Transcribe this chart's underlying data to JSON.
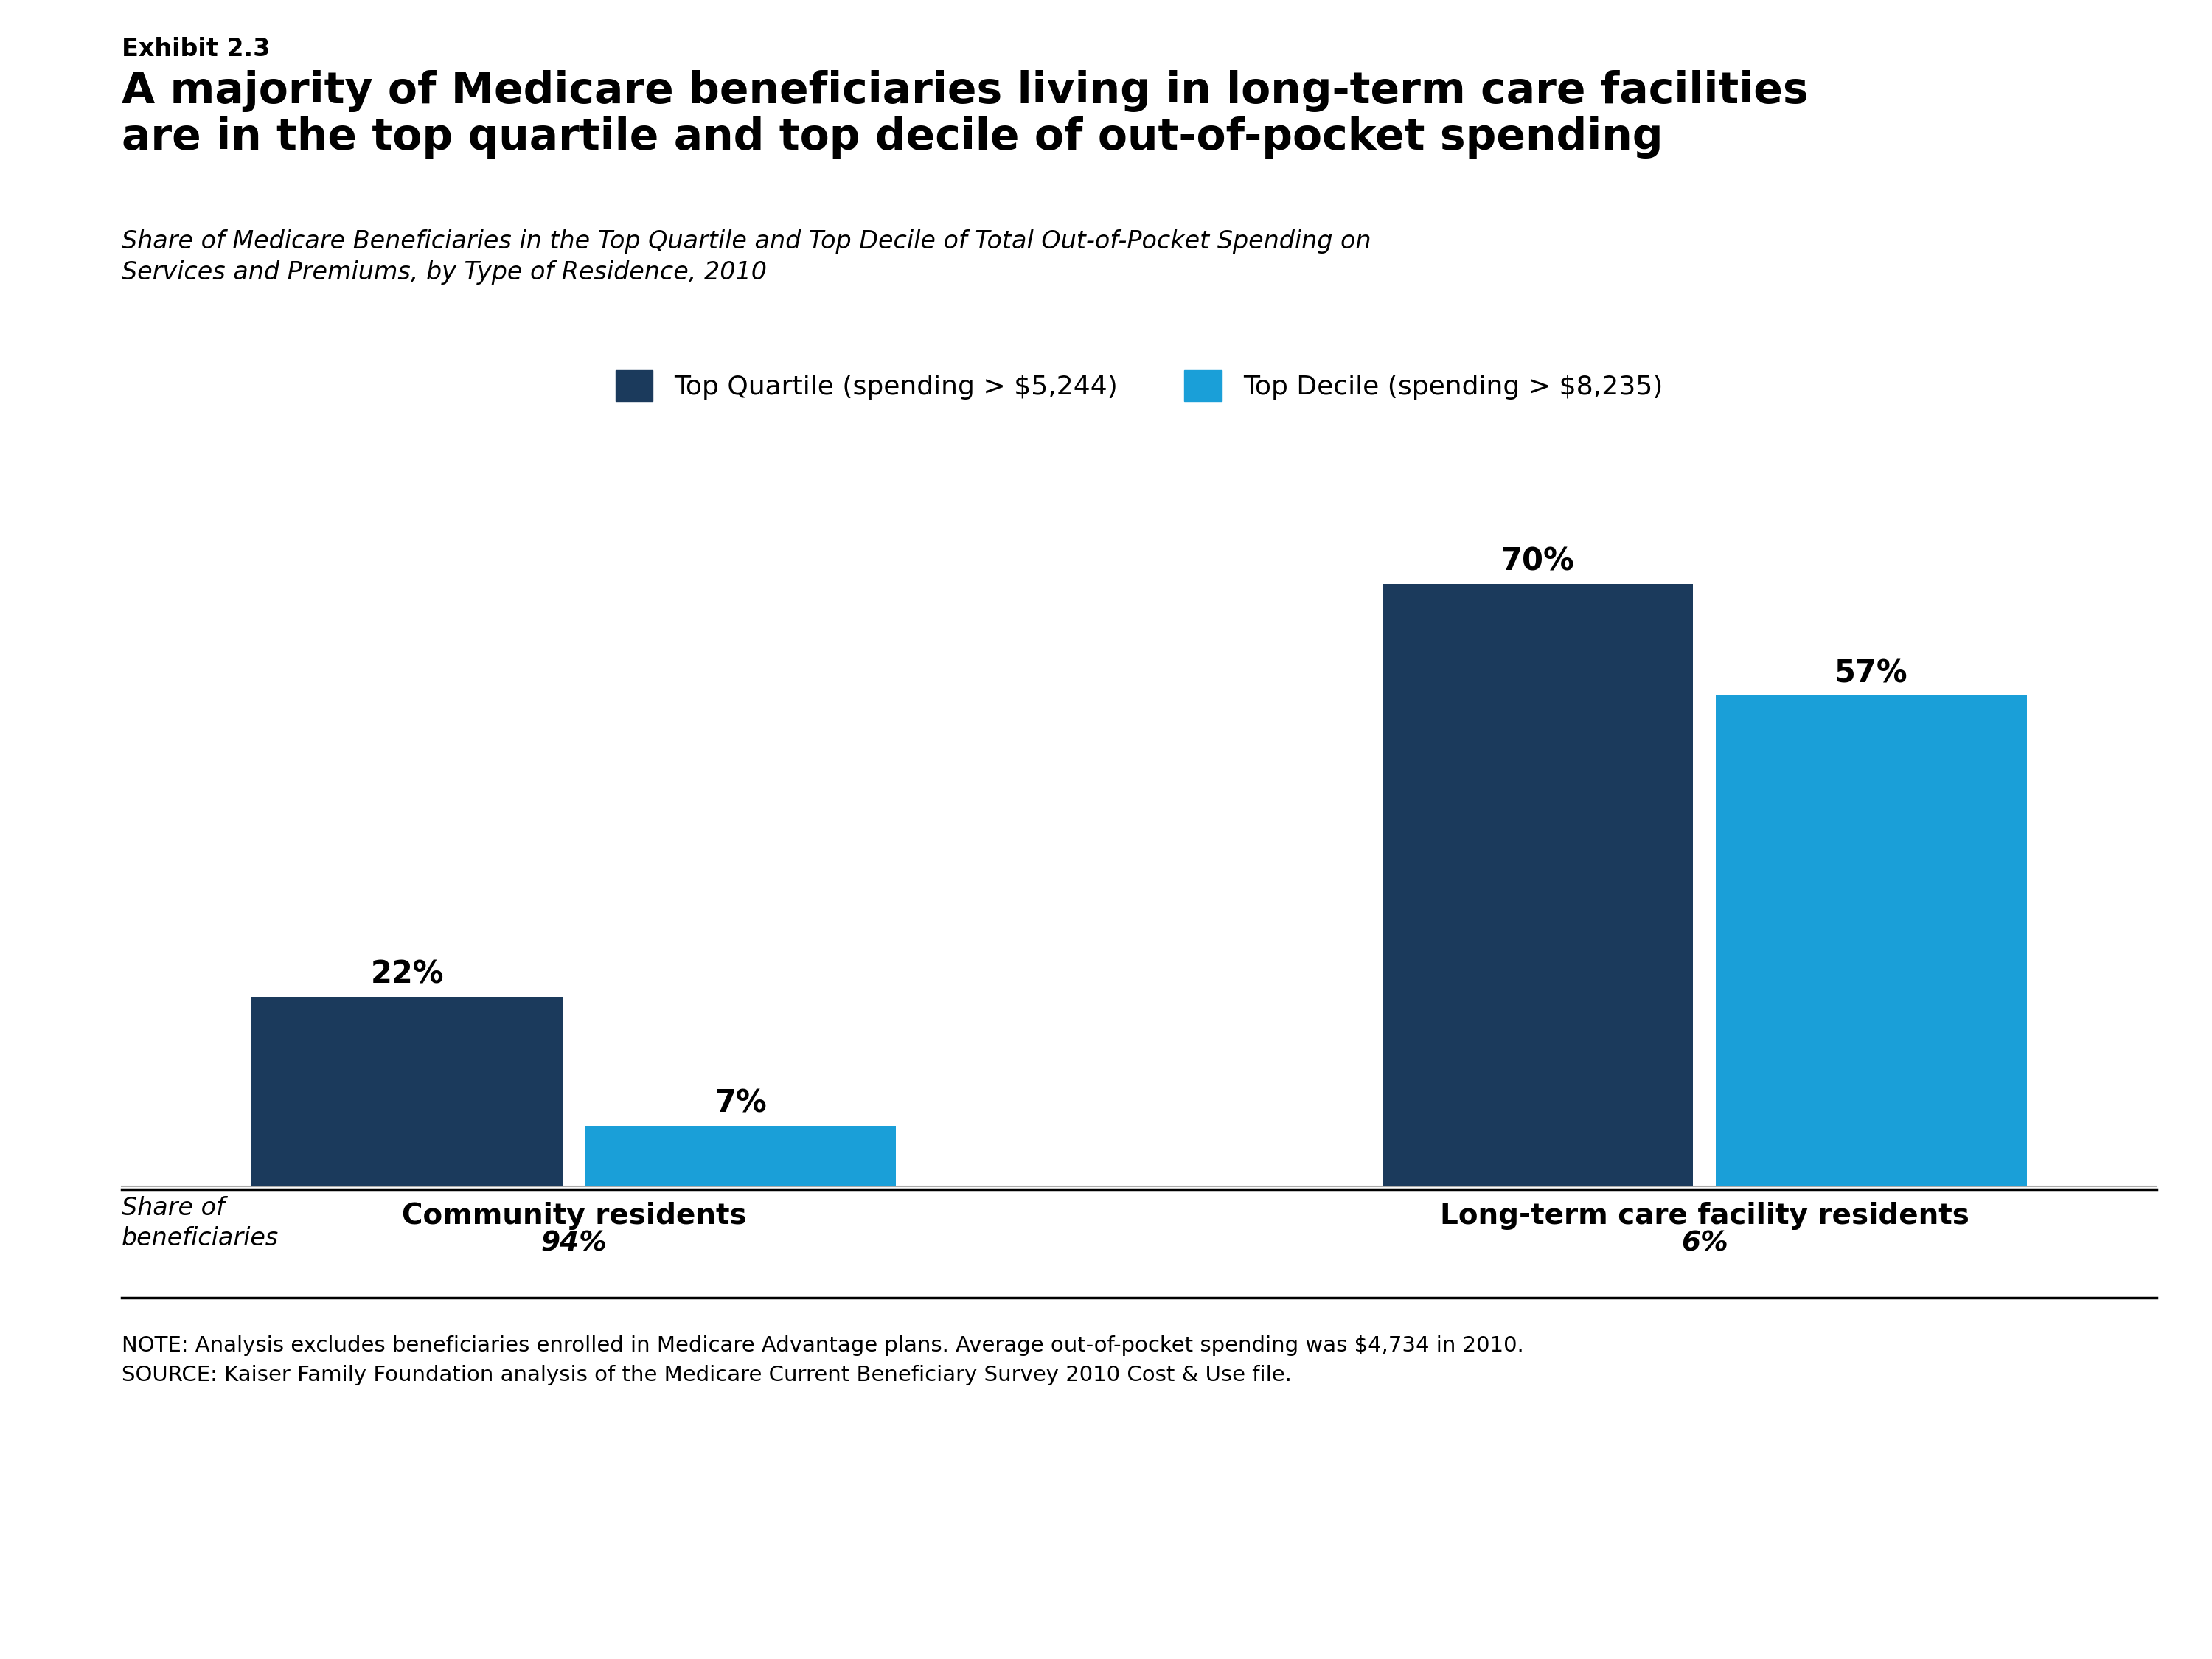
{
  "exhibit_label": "Exhibit 2.3",
  "title": "A majority of Medicare beneficiaries living in long-term care facilities\nare in the top quartile and top decile of out-of-pocket spending",
  "subtitle": "Share of Medicare Beneficiaries in the Top Quartile and Top Decile of Total Out-of-Pocket Spending on\nServices and Premiums, by Type of Residence, 2010",
  "legend_labels": [
    "Top Quartile (spending > $5,244)",
    "Top Decile (spending > $8,235)"
  ],
  "legend_colors": [
    "#1b3a5c",
    "#1a9fd8"
  ],
  "categories": [
    "Community residents",
    "Long-term care facility residents"
  ],
  "quartile_values": [
    22,
    70
  ],
  "decile_values": [
    7,
    57
  ],
  "quartile_color": "#1b3a5c",
  "decile_color": "#1a9fd8",
  "bar_labels_quartile": [
    "22%",
    "70%"
  ],
  "bar_labels_decile": [
    "7%",
    "57%"
  ],
  "share_label": "Share of\nbeneficiaries",
  "share_values": [
    "94%",
    "6%"
  ],
  "note_text": "NOTE: Analysis excludes beneficiaries enrolled in Medicare Advantage plans. Average out-of-pocket spending was $4,734 in 2010.\nSOURCE: Kaiser Family Foundation analysis of the Medicare Current Beneficiary Survey 2010 Cost & Use file.",
  "ylim": [
    0,
    80
  ],
  "background_color": "#ffffff"
}
